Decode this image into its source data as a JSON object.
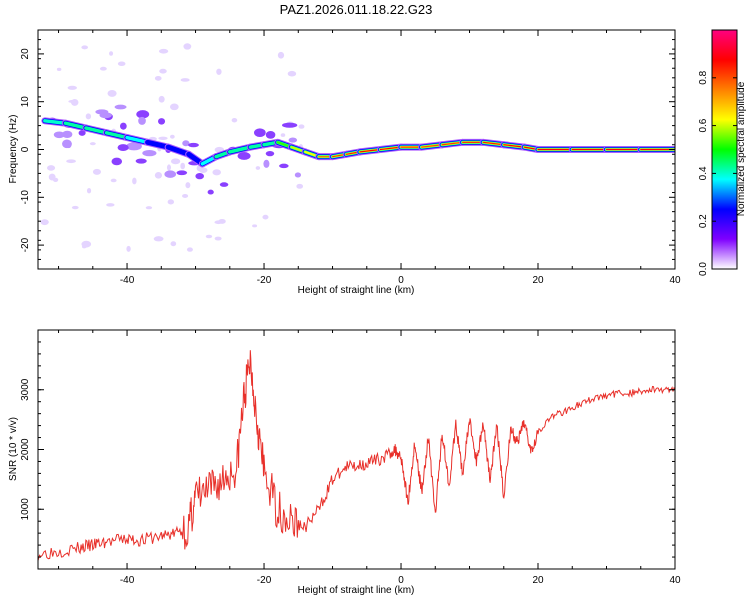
{
  "title": "PAZ1.2026.011.18.22.G23",
  "chart_data": [
    {
      "type": "heatmap",
      "xlabel": "Height of straight line (km)",
      "ylabel": "Frequency (Hz)",
      "xlim": [
        -53,
        40
      ],
      "ylim": [
        -25,
        25
      ],
      "xticks": [
        -40,
        -20,
        0,
        20,
        40
      ],
      "yticks": [
        -20,
        -10,
        0,
        10,
        20
      ],
      "colorbar": {
        "label": "Normalized spectral amplitude",
        "range": [
          0,
          1
        ],
        "ticks": [
          "0.0",
          "0.2",
          "0.4",
          "0.6",
          "0.8"
        ],
        "colormap": [
          "#ffffff",
          "#7f00ff",
          "#0000ff",
          "#00ffff",
          "#00ff00",
          "#ffff00",
          "#ff8000",
          "#ff0000",
          "#ff0080"
        ]
      },
      "ridge": {
        "x": [
          -52,
          -49,
          -46,
          -43,
          -40,
          -37,
          -34,
          -31,
          -29,
          -27,
          -25,
          -22,
          -20,
          -18,
          -16,
          -14,
          -12,
          -10,
          -8,
          -6,
          -3,
          0,
          3,
          6,
          9,
          12,
          15,
          18,
          20,
          25,
          30,
          35,
          40
        ],
        "frequency": [
          6,
          5.5,
          4.5,
          3.5,
          2.5,
          1.5,
          0.5,
          -1,
          -3,
          -1.5,
          -0.5,
          0.5,
          1,
          1.5,
          0.5,
          -0.5,
          -1.5,
          -1.5,
          -1,
          -0.5,
          0,
          0.5,
          0.5,
          1,
          1.5,
          1.5,
          1,
          0.5,
          0,
          0,
          0,
          0,
          0
        ],
        "amplitude": [
          0.35,
          0.45,
          0.5,
          0.45,
          0.4,
          0.35,
          0.3,
          0.3,
          0.35,
          0.4,
          0.45,
          0.5,
          0.45,
          0.5,
          0.55,
          0.65,
          0.75,
          0.8,
          0.85,
          0.85,
          0.9,
          0.85,
          0.8,
          0.8,
          0.85,
          0.85,
          0.85,
          0.9,
          0.95,
          0.97,
          0.98,
          0.99,
          1.0
        ]
      }
    },
    {
      "type": "line",
      "xlabel": "Height of straight line (km)",
      "ylabel": "SNR (10 * v/v)",
      "xlim": [
        -53,
        40
      ],
      "ylim": [
        0,
        4000
      ],
      "xticks": [
        -40,
        -20,
        0,
        20,
        40
      ],
      "yticks": [
        1000,
        2000,
        3000
      ],
      "color": "#e8302a",
      "series": [
        {
          "name": "SNR",
          "x": [
            -53,
            -50,
            -47,
            -45,
            -43,
            -40,
            -38,
            -35,
            -33,
            -31,
            -30,
            -28,
            -26,
            -24,
            -23,
            -22,
            -21,
            -20,
            -18,
            -16,
            -14,
            -12,
            -10,
            -8,
            -6,
            -4,
            -2,
            -1,
            0,
            1,
            2,
            3,
            4,
            5,
            6,
            7,
            8,
            9,
            10,
            11,
            12,
            13,
            14,
            15,
            16,
            17,
            18,
            19,
            20,
            22,
            24,
            26,
            28,
            30,
            32,
            34,
            36,
            38,
            40
          ],
          "values": [
            250,
            300,
            350,
            400,
            450,
            500,
            480,
            550,
            600,
            700,
            1200,
            1300,
            1500,
            1700,
            2800,
            3500,
            2500,
            1600,
            1000,
            800,
            700,
            1000,
            1500,
            1700,
            1750,
            1800,
            1900,
            2000,
            1900,
            1100,
            2100,
            1300,
            2200,
            900,
            2300,
            1400,
            2400,
            1600,
            2500,
            1800,
            2450,
            1500,
            2400,
            1200,
            2350,
            2100,
            2450,
            2000,
            2300,
            2550,
            2650,
            2750,
            2850,
            2900,
            2950,
            2950,
            3000,
            3000,
            3000
          ]
        }
      ]
    }
  ]
}
